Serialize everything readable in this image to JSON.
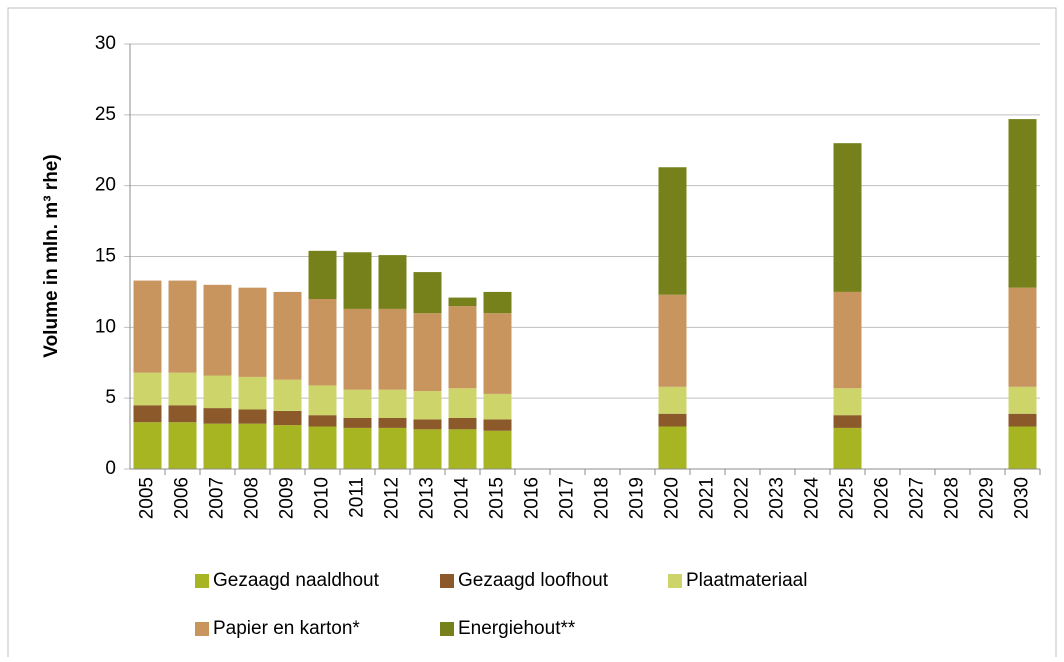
{
  "chart_data": {
    "type": "stacked-bar",
    "ylabel": "Volume in mln. m³ rhe)",
    "categories": [
      "2005",
      "2006",
      "2007",
      "2008",
      "2009",
      "2010",
      "2011",
      "2012",
      "2013",
      "2014",
      "2015",
      "2016",
      "2017",
      "2018",
      "2019",
      "2020",
      "2021",
      "2022",
      "2023",
      "2024",
      "2025",
      "2026",
      "2027",
      "2028",
      "2029",
      "2030"
    ],
    "series": [
      {
        "name": "Gezaagd naaldhout",
        "color": "#a6b521",
        "values": [
          3.3,
          3.3,
          3.2,
          3.2,
          3.1,
          3.0,
          2.9,
          2.9,
          2.8,
          2.8,
          2.7,
          null,
          null,
          null,
          null,
          3.0,
          null,
          null,
          null,
          null,
          2.9,
          null,
          null,
          null,
          null,
          3.0
        ]
      },
      {
        "name": "Gezaagd loofhout",
        "color": "#8c5a2a",
        "values": [
          1.2,
          1.2,
          1.1,
          1.0,
          1.0,
          0.8,
          0.7,
          0.7,
          0.7,
          0.8,
          0.8,
          null,
          null,
          null,
          null,
          0.9,
          null,
          null,
          null,
          null,
          0.9,
          null,
          null,
          null,
          null,
          0.9
        ]
      },
      {
        "name": "Plaatmateriaal",
        "color": "#cdd46a",
        "values": [
          2.3,
          2.3,
          2.3,
          2.3,
          2.2,
          2.1,
          2.0,
          2.0,
          2.0,
          2.1,
          1.8,
          null,
          null,
          null,
          null,
          1.9,
          null,
          null,
          null,
          null,
          1.9,
          null,
          null,
          null,
          null,
          1.9
        ]
      },
      {
        "name": "Papier en karton*",
        "color": "#c8955f",
        "values": [
          6.5,
          6.5,
          6.4,
          6.3,
          6.2,
          6.1,
          5.7,
          5.7,
          5.5,
          5.8,
          5.7,
          null,
          null,
          null,
          null,
          6.5,
          null,
          null,
          null,
          null,
          6.8,
          null,
          null,
          null,
          null,
          7.0
        ]
      },
      {
        "name": "Energiehout**",
        "color": "#77811b",
        "values": [
          null,
          null,
          null,
          null,
          null,
          3.4,
          4.0,
          3.8,
          2.9,
          0.6,
          1.5,
          null,
          null,
          null,
          null,
          9.0,
          null,
          null,
          null,
          null,
          10.5,
          null,
          null,
          null,
          null,
          11.9
        ]
      }
    ],
    "ylim": [
      0,
      30
    ],
    "yticks": [
      0,
      5,
      10,
      15,
      20,
      25,
      30
    ],
    "grid": true
  }
}
